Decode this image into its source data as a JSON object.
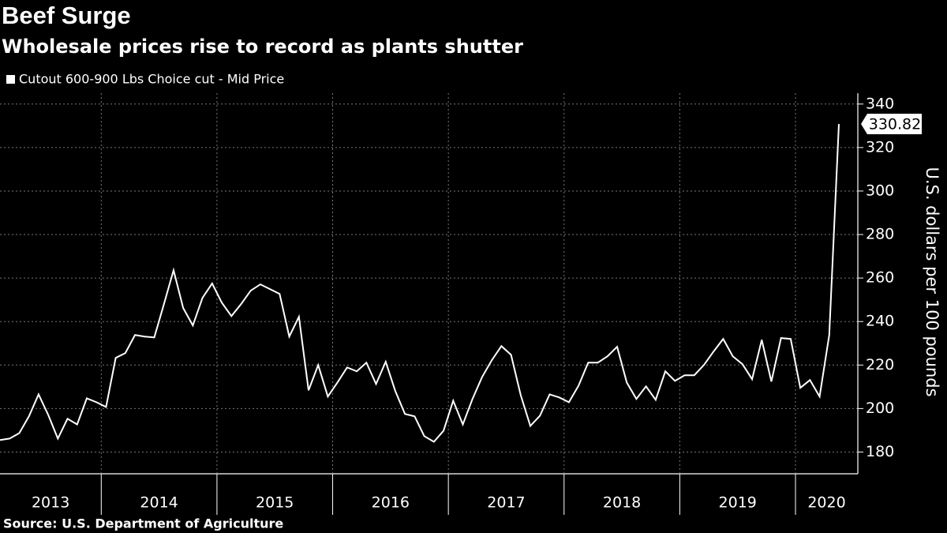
{
  "chart_data": {
    "type": "line",
    "title": "Beef Surge",
    "subtitle": "Wholesale prices rise to record as plants shutter",
    "source": "Source: U.S. Department of Agriculture",
    "y_label": "U.S. dollars per 100 pounds",
    "categories": [
      "2013",
      null,
      null,
      null,
      null,
      null,
      null,
      null,
      null,
      null,
      null,
      "2014",
      null,
      null,
      null,
      null,
      null,
      null,
      null,
      null,
      null,
      null,
      null,
      "2015",
      null,
      null,
      null,
      null,
      null,
      null,
      null,
      null,
      null,
      null,
      null,
      "2016",
      null,
      null,
      null,
      null,
      null,
      null,
      null,
      null,
      null,
      null,
      null,
      "2017",
      null,
      null,
      null,
      null,
      null,
      null,
      null,
      null,
      null,
      null,
      null,
      "2018",
      null,
      null,
      null,
      null,
      null,
      null,
      null,
      null,
      null,
      null,
      null,
      "2019",
      null,
      null,
      null,
      null,
      null,
      null,
      null,
      null,
      null,
      null,
      null,
      "2020",
      null,
      null,
      null,
      null
    ],
    "series": [
      {
        "name": "Cutout 600-900 Lbs Choice cut - Mid Price",
        "color": "#ffffff",
        "axis": "y2",
        "values": [
          185.5,
          186.2,
          188.7,
          196.4,
          206.5,
          197.1,
          186.2,
          195.3,
          192.7,
          204.7,
          202.9,
          200.7,
          223.3,
          225.5,
          233.8,
          233.1,
          232.7,
          248.0,
          263.6,
          246.2,
          238.2,
          250.9,
          257.5,
          248.7,
          242.5,
          248.0,
          254.2,
          257.1,
          254.9,
          252.7,
          233.1,
          242.2,
          208.4,
          220.0,
          205.5,
          212.0,
          218.9,
          217.1,
          221.1,
          211.3,
          221.5,
          208.0,
          197.5,
          196.4,
          187.3,
          184.7,
          189.8,
          203.6,
          192.7,
          204.4,
          214.5,
          222.2,
          228.7,
          224.7,
          206.2,
          192.0,
          196.7,
          206.5,
          205.1,
          202.9,
          210.5,
          221.1,
          221.1,
          224.0,
          228.4,
          212.0,
          204.4,
          210.2,
          204.0,
          217.1,
          212.7,
          215.3,
          215.3,
          220.0,
          226.2,
          232.0,
          224.0,
          220.4,
          213.5,
          231.6,
          212.4,
          232.4,
          232.0,
          209.5,
          213.1,
          205.5,
          233.8,
          330.82
        ]
      }
    ],
    "y2lim": [
      170,
      345
    ],
    "y2ticks": [
      180,
      200,
      220,
      240,
      260,
      280,
      300,
      320,
      340
    ],
    "grid": true
  }
}
